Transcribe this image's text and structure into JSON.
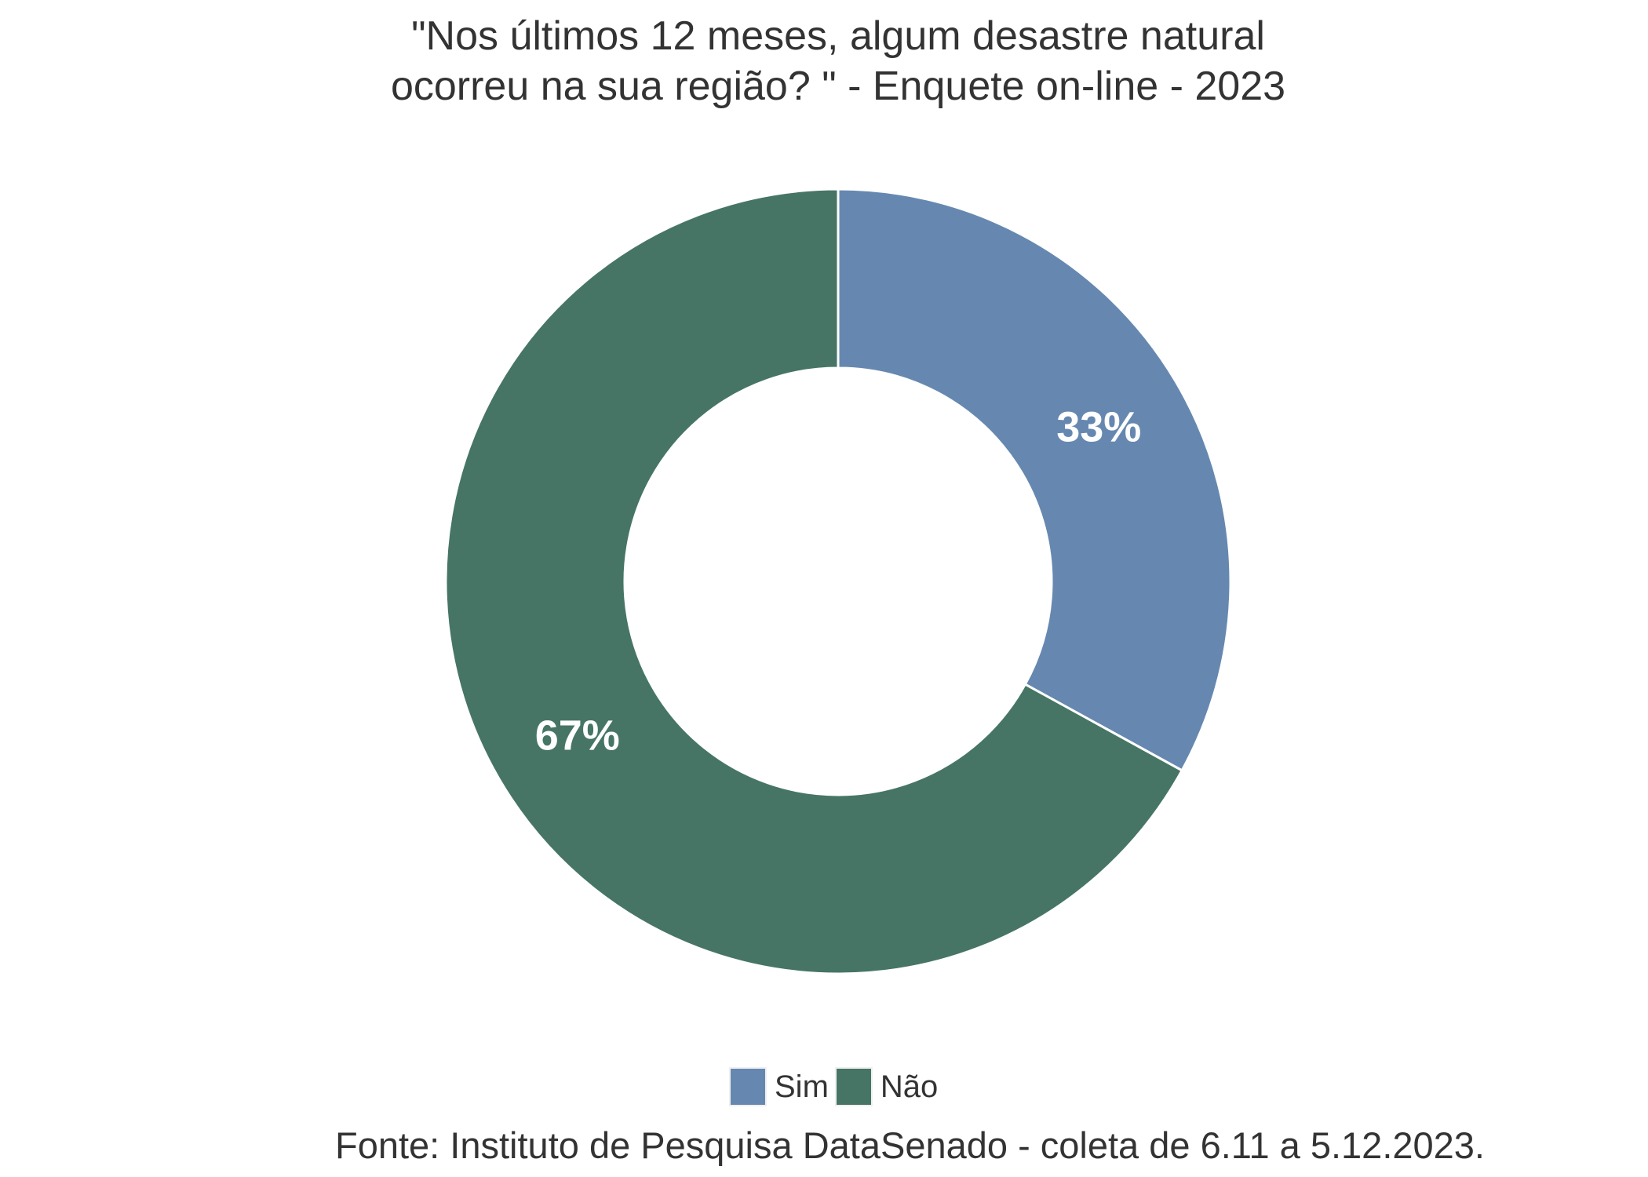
{
  "chart_data": {
    "type": "pie",
    "variant": "donut",
    "title_lines": [
      "\"Nos últimos 12 meses, algum desastre natural",
      "ocorreu na sua região? \" - Enquete on-line - 2023"
    ],
    "categories": [
      "Sim",
      "Não"
    ],
    "values": [
      33,
      67
    ],
    "data_labels": [
      "33%",
      "67%"
    ],
    "colors": [
      "#6688B0",
      "#467565"
    ],
    "legend_position": "bottom",
    "caption": "Fonte: Instituto de Pesquisa DataSenado - coleta de 6.11 a 5.12.2023."
  }
}
